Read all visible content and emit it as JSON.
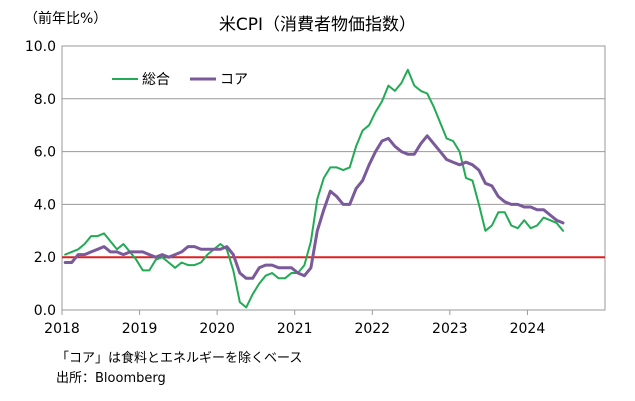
{
  "chart_data": {
    "type": "line",
    "title": "米CPI（消費者物価指数）",
    "unit_label": "（前年比%）",
    "ylim": [
      0,
      10
    ],
    "y_ticks": [
      "0.0",
      "2.0",
      "4.0",
      "6.0",
      "8.0",
      "10.0"
    ],
    "x_ticks": [
      "2018",
      "2019",
      "2020",
      "2021",
      "2022",
      "2023",
      "2024"
    ],
    "xlim": [
      "2018-01",
      "2024-12"
    ],
    "grid": true,
    "legend_position": "top-left",
    "reference_line": {
      "y": 2.0,
      "color": "#e02020"
    },
    "series": [
      {
        "name": "総合",
        "color": "#22aa55",
        "start": "2018-01",
        "values": [
          2.1,
          2.2,
          2.3,
          2.5,
          2.8,
          2.8,
          2.9,
          2.6,
          2.3,
          2.5,
          2.2,
          1.9,
          1.5,
          1.5,
          1.9,
          2.0,
          1.8,
          1.6,
          1.8,
          1.7,
          1.7,
          1.8,
          2.1,
          2.3,
          2.5,
          2.3,
          1.5,
          0.3,
          0.1,
          0.6,
          1.0,
          1.3,
          1.4,
          1.2,
          1.2,
          1.4,
          1.4,
          1.7,
          2.6,
          4.2,
          5.0,
          5.4,
          5.4,
          5.3,
          5.4,
          6.2,
          6.8,
          7.0,
          7.5,
          7.9,
          8.5,
          8.3,
          8.6,
          9.1,
          8.5,
          8.3,
          8.2,
          7.7,
          7.1,
          6.5,
          6.4,
          6.0,
          5.0,
          4.9,
          4.0,
          3.0,
          3.2,
          3.7,
          3.7,
          3.2,
          3.1,
          3.4,
          3.1,
          3.2,
          3.5,
          3.4,
          3.3,
          3.0
        ]
      },
      {
        "name": "コア",
        "color": "#7a5a9a",
        "start": "2018-01",
        "values": [
          1.8,
          1.8,
          2.1,
          2.1,
          2.2,
          2.3,
          2.4,
          2.2,
          2.2,
          2.1,
          2.2,
          2.2,
          2.2,
          2.1,
          2.0,
          2.1,
          2.0,
          2.1,
          2.2,
          2.4,
          2.4,
          2.3,
          2.3,
          2.3,
          2.3,
          2.4,
          2.1,
          1.4,
          1.2,
          1.2,
          1.6,
          1.7,
          1.7,
          1.6,
          1.6,
          1.6,
          1.4,
          1.3,
          1.6,
          3.0,
          3.8,
          4.5,
          4.3,
          4.0,
          4.0,
          4.6,
          4.9,
          5.5,
          6.0,
          6.4,
          6.5,
          6.2,
          6.0,
          5.9,
          5.9,
          6.3,
          6.6,
          6.3,
          6.0,
          5.7,
          5.6,
          5.5,
          5.6,
          5.5,
          5.3,
          4.8,
          4.7,
          4.3,
          4.1,
          4.0,
          4.0,
          3.9,
          3.9,
          3.8,
          3.8,
          3.6,
          3.4,
          3.3
        ]
      }
    ]
  },
  "notes": {
    "line1": "「コア」は食料とエネルギーを除くベース",
    "line2": "出所：Bloomberg"
  }
}
